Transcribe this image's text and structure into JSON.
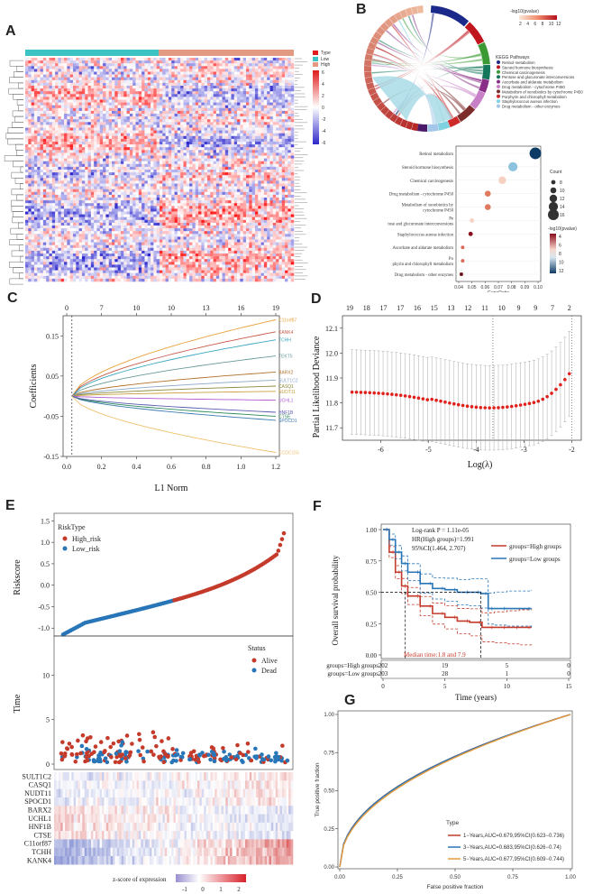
{
  "panels": {
    "a": "A",
    "b": "B",
    "c": "C",
    "d": "D",
    "e": "E",
    "f": "F",
    "g": "G"
  },
  "heatmap_a": {
    "legend_title": "Type",
    "legend_low": "Low",
    "legend_high": "High",
    "scale_ticks": [
      "6",
      "4",
      "2",
      "0",
      "-2",
      "-4",
      "-6"
    ],
    "colors": {
      "low": "#2d27c9",
      "mid": "#ffffff",
      "high": "#e01b1b",
      "group_low": "#3cc3c3",
      "group_high": "#e39a82"
    }
  },
  "chord_b": {
    "scale_title": "-log10(pvalue)",
    "scale_ticks": [
      "2",
      "4",
      "6",
      "8",
      "10",
      "12"
    ],
    "legend_title": "KEGG Pathways",
    "legend": [
      {
        "label": "Retinol metabolism",
        "color": "#1b2a8a"
      },
      {
        "label": "Steroid hormone biosynthesis",
        "color": "#c0161d"
      },
      {
        "label": "Chemical carcinogenesis",
        "color": "#3c9a34"
      },
      {
        "label": "Pentose and glucuronate interconversions",
        "color": "#14765a"
      },
      {
        "label": "Ascorbate and aldarate metabolism",
        "color": "#8a2d86"
      },
      {
        "label": "Drug metabolism - cytochrome P450",
        "color": "#c77fc7"
      },
      {
        "label": "Metabolism of xenobiotics by cytochrome P450",
        "color": "#7d2c2c"
      },
      {
        "label": "Porphyrin and chlorophyll metabolism",
        "color": "#cf2a2a"
      },
      {
        "label": "Staphylococcus aureus infection",
        "color": "#7fd0e0"
      },
      {
        "label": "Drug metabolism - other enzymes",
        "color": "#a4c6e8"
      }
    ]
  },
  "chart_data": [
    {
      "type": "scatter",
      "name": "kegg-bubble",
      "xlabel": "GeneRatio",
      "xlim": [
        0.04,
        0.1
      ],
      "xticks": [
        "0.04",
        "0.05",
        "0.06",
        "0.07",
        "0.08",
        "0.09",
        "0.10"
      ],
      "categories": [
        "Retinol metabolism",
        "Steroid hormone biosynthesis",
        "Chemical carcinogenesis",
        "Drug metabolism - cytochrome P450",
        "Metabolism of xenobiotics by cytochrome P450",
        "Pentose and glucuronate interconversions",
        "Staphylococcus aureus infection",
        "Ascorbate and aldarate metabolism",
        "Porphyrin and chlorophyll metabolism",
        "Drug metabolism - other enzymes"
      ],
      "gene_ratio": [
        0.098,
        0.081,
        0.073,
        0.062,
        0.062,
        0.05,
        0.049,
        0.043,
        0.043,
        0.042
      ],
      "count": [
        17,
        14,
        12,
        10,
        10,
        8,
        8,
        7,
        7,
        7
      ],
      "neg_log10_p": [
        12,
        9,
        6,
        5,
        5,
        4.5,
        2,
        4,
        4,
        2
      ],
      "size_legend_title": "Count",
      "size_legend": [
        "8",
        "10",
        "12",
        "14",
        "16"
      ],
      "color_legend_title": "-log10(pvalue)",
      "color_legend": [
        "4",
        "6",
        "8",
        "10",
        "12"
      ]
    },
    {
      "type": "line",
      "name": "lasso-coefficients",
      "xlabel": "L1 Norm",
      "ylabel": "Coefficients",
      "xlim": [
        0,
        1.2
      ],
      "ylim": [
        -0.15,
        0.2
      ],
      "xticks": [
        "0.0",
        "0.2",
        "0.4",
        "0.6",
        "0.8",
        "1.0",
        "1.2"
      ],
      "yticks": [
        "-0.15",
        "-0.05",
        "0.05",
        "0.15"
      ],
      "top_ticks": [
        "0",
        "7",
        "10",
        "10",
        "13",
        "16",
        "19"
      ],
      "series": [
        {
          "name": "C11orf87",
          "end": 0.19,
          "color": "#e8a23c"
        },
        {
          "name": "KANK4",
          "end": 0.16,
          "color": "#c75a4a"
        },
        {
          "name": "TCHH",
          "end": 0.14,
          "color": "#3aa5c0"
        },
        {
          "name": "TEKT5",
          "end": 0.1,
          "color": "#6a9a9a"
        },
        {
          "name": "BARX2",
          "end": 0.06,
          "color": "#b0702a"
        },
        {
          "name": "SULT1C2",
          "end": 0.04,
          "color": "#8aa6c8"
        },
        {
          "name": "CASQ1",
          "end": 0.025,
          "color": "#8a8a3a"
        },
        {
          "name": "NUDT11",
          "end": 0.012,
          "color": "#c8a03a"
        },
        {
          "name": "UCHL1",
          "end": -0.01,
          "color": "#b05ad0"
        },
        {
          "name": "SPOCD1",
          "end": -0.06,
          "color": "#3a7ab0"
        },
        {
          "name": "CTSE",
          "end": -0.05,
          "color": "#2a8a5a"
        },
        {
          "name": "HNF1B",
          "end": -0.04,
          "color": "#5a5ab0"
        },
        {
          "name": "CCDC155",
          "end": -0.14,
          "color": "#f0c070"
        }
      ]
    },
    {
      "type": "scatter",
      "name": "lasso-cv",
      "xlabel": "Log(λ)",
      "ylabel": "Partial Likelihood Deviance",
      "xlim": [
        -6.8,
        -1.8
      ],
      "ylim": [
        11.65,
        12.15
      ],
      "xticks": [
        "-6",
        "-5",
        "-4",
        "-3",
        "-2"
      ],
      "yticks": [
        "11.7",
        "11.8",
        "11.9",
        "12.0",
        "12.1"
      ],
      "top_ticks": [
        "19",
        "18",
        "17",
        "17",
        "16",
        "15",
        "13",
        "12",
        "11",
        "10",
        "9",
        "9",
        "7",
        "2"
      ],
      "lambda_min": -3.65,
      "lambda_1se": -2.0
    },
    {
      "type": "scatter",
      "name": "riskscore",
      "ylabel": "Riskscore",
      "legend_title": "RiskType",
      "legend": [
        "High_risk",
        "Low_risk"
      ],
      "yticks": [
        "-1.0",
        "-0.5",
        "0.0",
        "0.5",
        "1.0",
        "1.5"
      ],
      "ylim": [
        -1.1,
        1.55
      ]
    },
    {
      "type": "scatter",
      "name": "survival-time",
      "ylabel": "Time",
      "legend_title": "Status",
      "legend": [
        "Alive",
        "Dead"
      ],
      "yticks": [
        "0",
        "5",
        "10"
      ],
      "ylim": [
        0,
        14
      ]
    },
    {
      "type": "heatmap",
      "name": "risk-gene-heatmap",
      "genes": [
        "SULT1C2",
        "CASQ1",
        "NUDT11",
        "SPOCD1",
        "BARX2",
        "UCHL1",
        "HNF1B",
        "CTSE",
        "C11orf87",
        "TCHH",
        "KANK4"
      ],
      "legend_title": "z-score of expression",
      "legend_ticks": [
        "-1",
        "0",
        "1",
        "2"
      ]
    },
    {
      "type": "line",
      "name": "kaplan-meier",
      "xlabel": "Time (years)",
      "ylabel": "Overall survival probability",
      "xlim": [
        0,
        15
      ],
      "ylim": [
        0,
        1
      ],
      "xticks": [
        "0",
        "5",
        "10",
        "15"
      ],
      "yticks": [
        "0.00",
        "0.25",
        "0.50",
        "0.75",
        "1.00"
      ],
      "annotations": [
        "Log-rank P = 1.11e-05",
        "HR(High groups)=1.991",
        "95%CI(1.464, 2.707)",
        "Median time:1.8 and 7.9"
      ],
      "series": [
        {
          "name": "groups=High groups",
          "color": "#c43b2b",
          "x": [
            0,
            0.5,
            1,
            1.5,
            2,
            3,
            4,
            5,
            6,
            7,
            8,
            9,
            10,
            11,
            12
          ],
          "y": [
            1,
            0.82,
            0.66,
            0.55,
            0.47,
            0.39,
            0.33,
            0.3,
            0.27,
            0.26,
            0.22,
            0.22,
            0.22,
            0.22,
            0.22
          ]
        },
        {
          "name": "groups=Low groups",
          "color": "#2876b8",
          "x": [
            0,
            0.5,
            1,
            1.5,
            2,
            3,
            4,
            5,
            6,
            7,
            7.9,
            8.5,
            9,
            10,
            12
          ],
          "y": [
            1,
            0.92,
            0.82,
            0.73,
            0.66,
            0.57,
            0.53,
            0.52,
            0.5,
            0.5,
            0.49,
            0.37,
            0.37,
            0.37,
            0.37
          ]
        }
      ],
      "risk_table": {
        "rows": [
          {
            "label": "groups=High groups",
            "values": [
              "202",
              "19",
              "5",
              "0"
            ]
          },
          {
            "label": "groups=Low groups",
            "values": [
              "203",
              "28",
              "1",
              "0"
            ]
          }
        ]
      }
    },
    {
      "type": "line",
      "name": "roc",
      "xlabel": "False positive fraction",
      "ylabel": "True positive fraction",
      "xlim": [
        0,
        1
      ],
      "ylim": [
        0,
        1
      ],
      "xticks": [
        "0.00",
        "0.25",
        "0.50",
        "0.75",
        "1.00"
      ],
      "yticks": [
        "0.00",
        "0.25",
        "0.50",
        "0.75",
        "1.00"
      ],
      "legend_title": "Type",
      "series": [
        {
          "name": "1−Years,AUC=0.679,95%CI(0.623−0.736)",
          "auc": 0.679,
          "color": "#c43b2b"
        },
        {
          "name": "3−Years,AUC=0.683,95%CI(0.626−0.74)",
          "auc": 0.683,
          "color": "#2876b8"
        },
        {
          "name": "5−Years,AUC=0.677,95%CI(0.609−0.744)",
          "auc": 0.677,
          "color": "#e39a3a"
        }
      ]
    }
  ]
}
